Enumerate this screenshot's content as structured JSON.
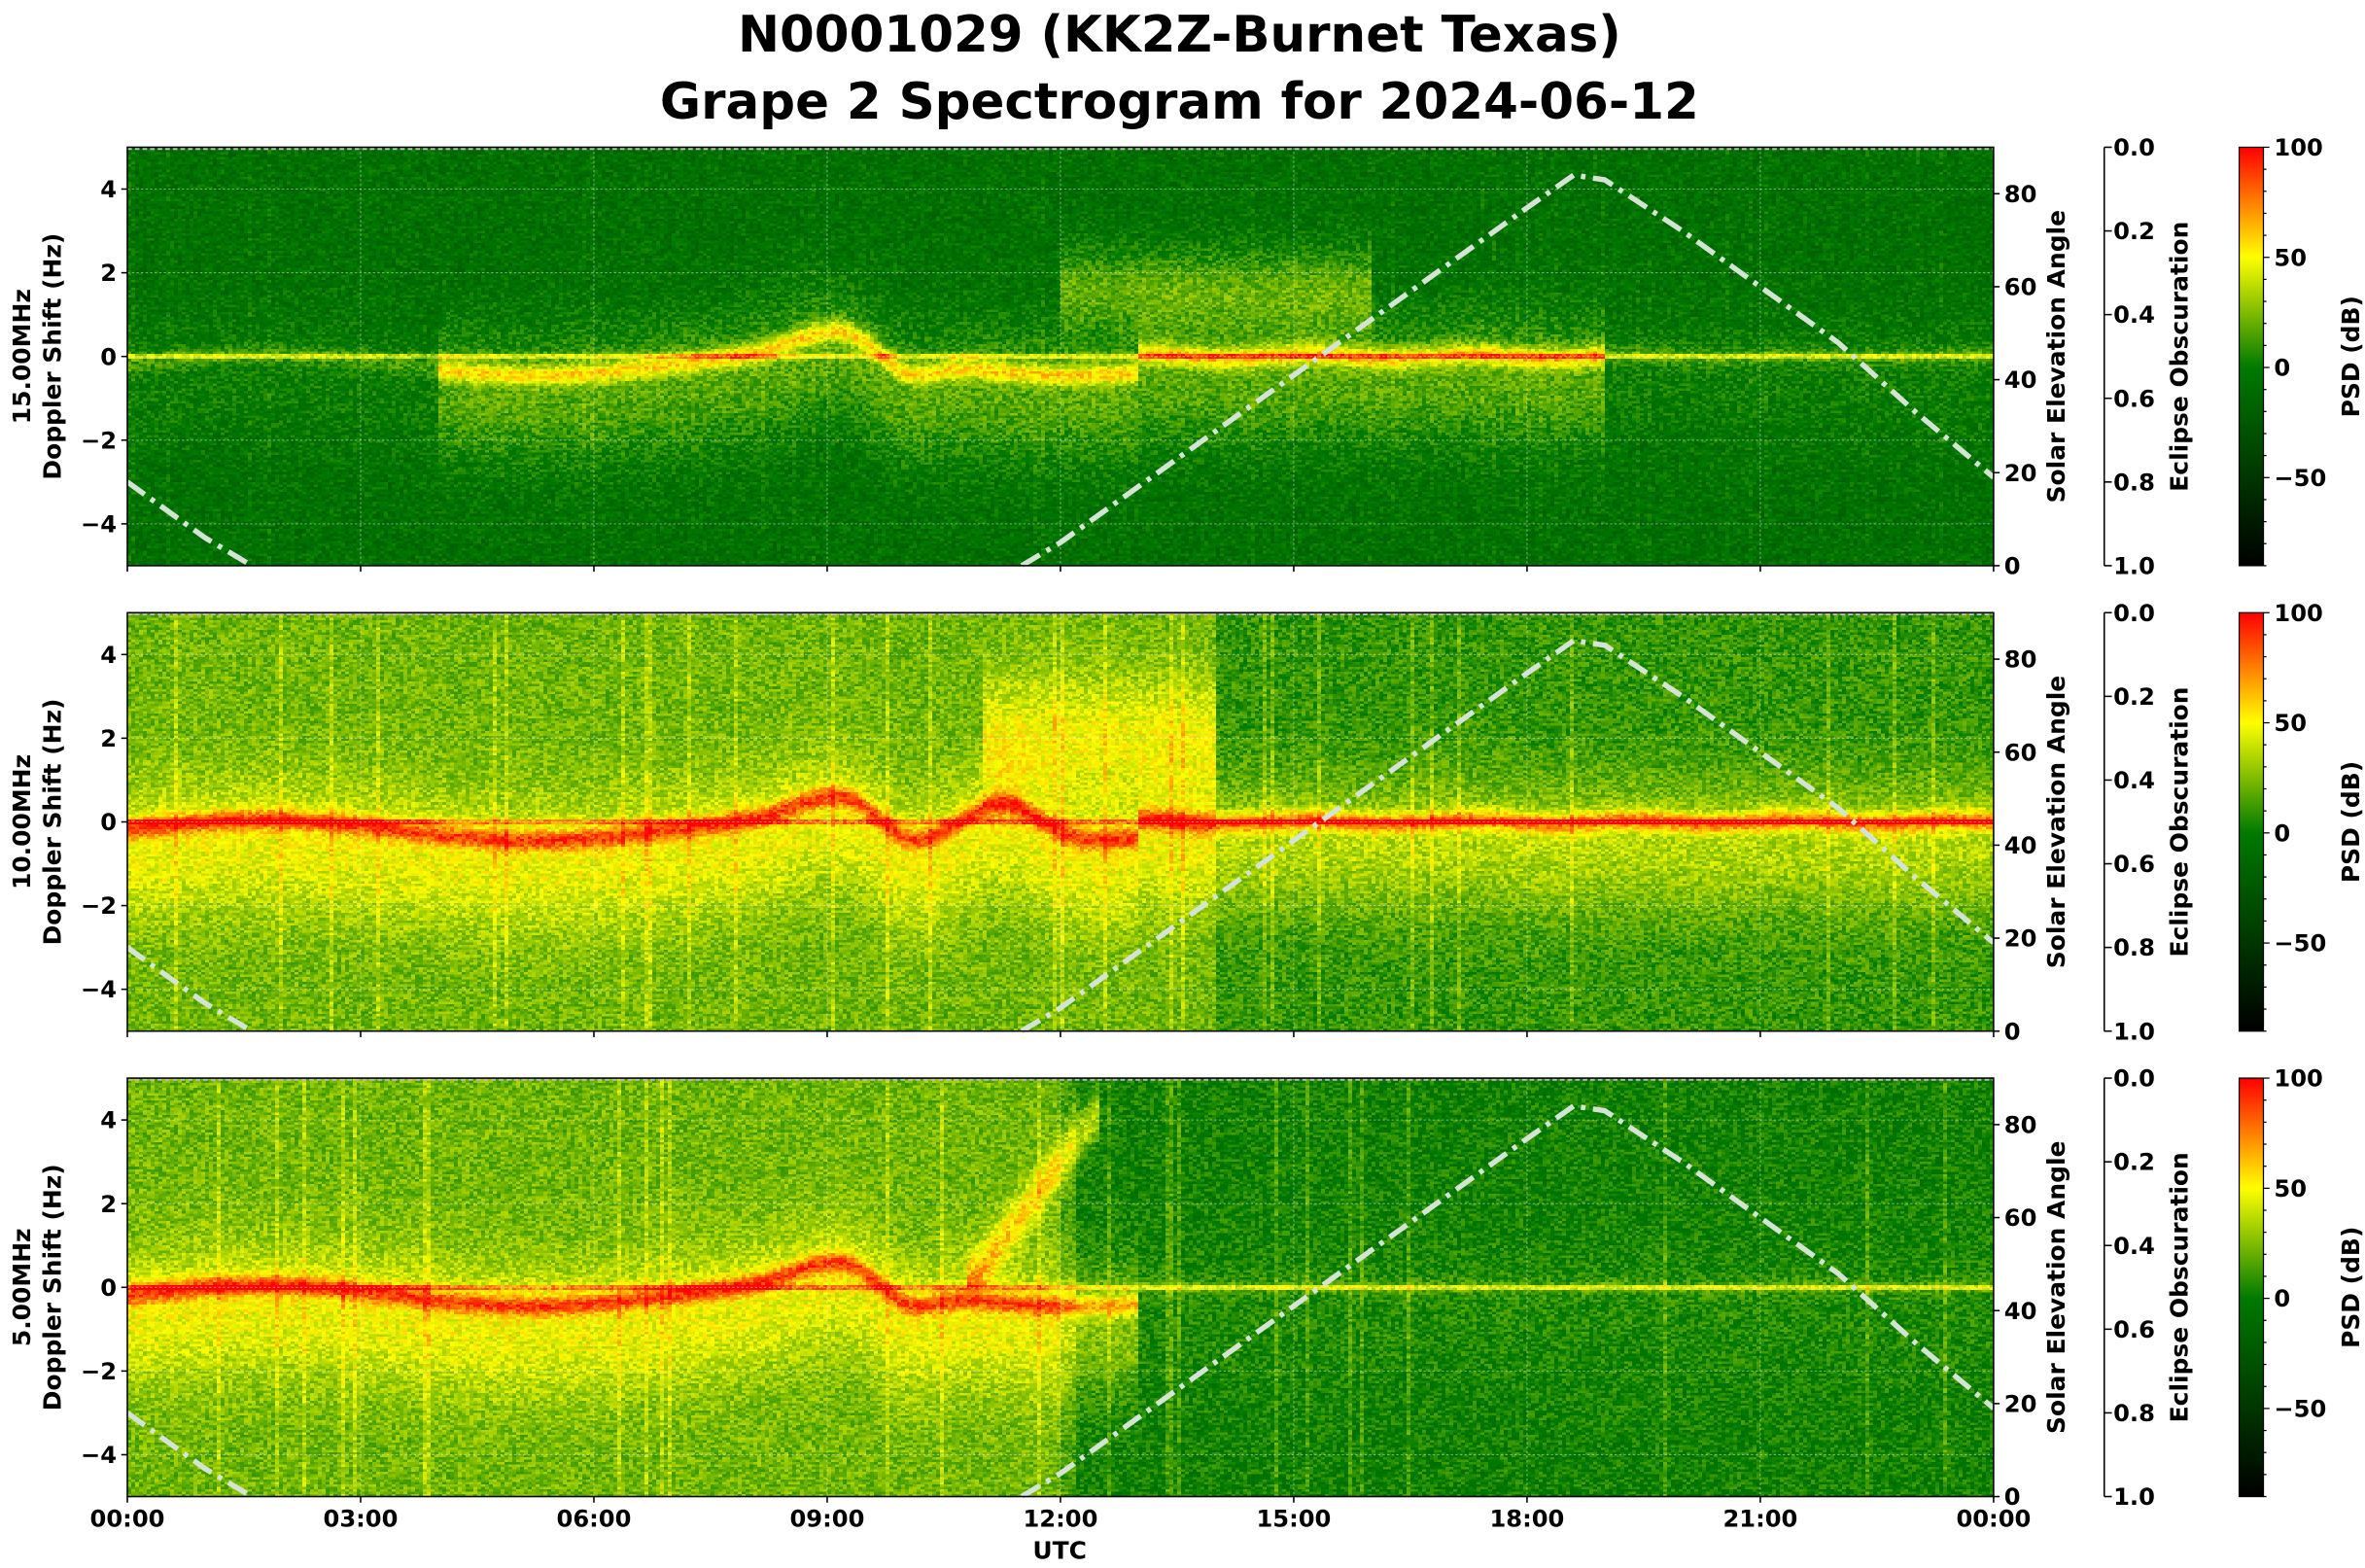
{
  "chart_data": {
    "type": "heatmap",
    "title": [
      "N0001029 (KK2Z-Burnet Texas)",
      "Grape 2 Spectrogram for 2024-06-12"
    ],
    "xlabel": "UTC",
    "x_ticks": [
      "00:00",
      "03:00",
      "06:00",
      "09:00",
      "12:00",
      "15:00",
      "18:00",
      "21:00",
      "00:00"
    ],
    "xlim_hours": [
      0,
      24
    ],
    "ylabel": "Doppler Shift (Hz)",
    "ylim": [
      -5,
      5
    ],
    "y_ticks": [
      -4,
      -2,
      0,
      2,
      4
    ],
    "y_tick_labels": [
      "−4",
      "−2",
      "0",
      "2",
      "4"
    ],
    "right_axis": {
      "label": "Solar Elevation Angle",
      "ylim": [
        0,
        90
      ],
      "ticks": [
        "0",
        "20",
        "40",
        "60",
        "80"
      ]
    },
    "eclipse_axis": {
      "label": "Eclipse Obscuration",
      "ylim": [
        1.0,
        0.0
      ],
      "ticks": [
        "0.0",
        "0.2",
        "0.4",
        "0.6",
        "0.8",
        "1.0"
      ]
    },
    "colorbar": {
      "label": "PSD (dB)",
      "range": [
        -90,
        100
      ],
      "ticks": [
        100,
        50,
        0,
        -50
      ],
      "tick_labels": [
        "100",
        "50",
        "0",
        "−50"
      ],
      "colors": [
        "#000000",
        "#007a00",
        "#ffff00",
        "#ff0000"
      ]
    },
    "panels": [
      {
        "frequency": "15.00MHz",
        "ylabel": "15.00MHz",
        "ylabel2": "Doppler Shift (Hz)"
      },
      {
        "frequency": "10.00MHz",
        "ylabel": "10.00MHz",
        "ylabel2": "Doppler Shift (Hz)"
      },
      {
        "frequency": "5.00MHz",
        "ylabel": "5.00MHz",
        "ylabel2": "Doppler Shift (Hz)"
      }
    ],
    "solar_elevation": {
      "style": "dash-dot",
      "color": "#d4e4d4",
      "x_hours": [
        0,
        0.5,
        1.0,
        1.6,
        11.5,
        12,
        13,
        14,
        15,
        16,
        17,
        18,
        18.6,
        19,
        20,
        21,
        22,
        23,
        24
      ],
      "y_degrees": [
        18,
        12,
        6,
        0,
        0,
        5,
        17,
        29,
        41,
        53,
        65,
        77,
        84,
        83,
        72,
        60,
        48,
        33,
        19
      ]
    }
  }
}
